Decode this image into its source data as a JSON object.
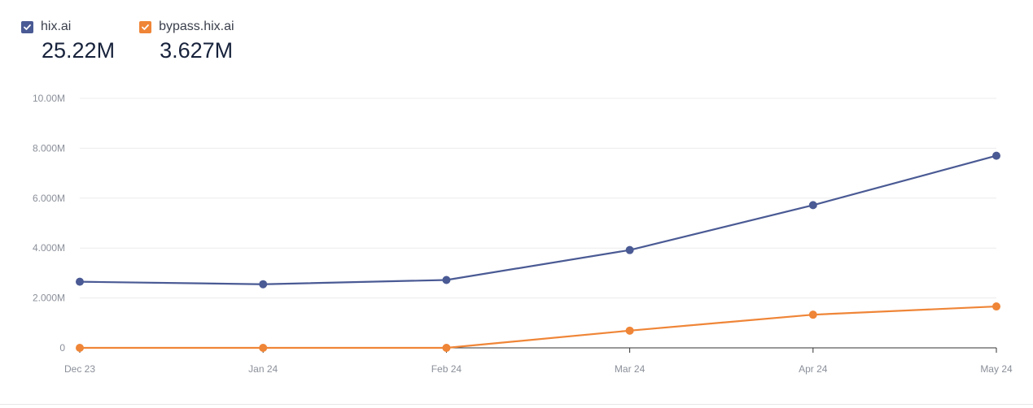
{
  "legend": {
    "items": [
      {
        "label": "hix.ai",
        "total": "25.22M",
        "color": "#4a5a94",
        "icon": "checkbox-checked-icon"
      },
      {
        "label": "bypass.hix.ai",
        "total": "3.627M",
        "color": "#ef8537",
        "icon": "checkbox-checked-icon"
      }
    ]
  },
  "chart_data": {
    "type": "line",
    "title": "",
    "xlabel": "",
    "ylabel": "",
    "categories": [
      "Dec 23",
      "Jan 24",
      "Feb 24",
      "Mar 24",
      "Apr 24",
      "May 24"
    ],
    "series": [
      {
        "name": "hix.ai",
        "color": "#4a5a94",
        "values": [
          2650000,
          2550000,
          2720000,
          3920000,
          5720000,
          7700000
        ]
      },
      {
        "name": "bypass.hix.ai",
        "color": "#ef8537",
        "values": [
          0,
          0,
          0,
          690000,
          1330000,
          1660000
        ]
      }
    ],
    "ylim": [
      0,
      10000000
    ],
    "y_ticks": [
      0,
      2000000,
      4000000,
      6000000,
      8000000,
      10000000
    ],
    "y_tick_labels": [
      "0",
      "2.000M",
      "4.000M",
      "6.000M",
      "8.000M",
      "10.00M"
    ],
    "grid": true,
    "legend_position": "top-left"
  }
}
